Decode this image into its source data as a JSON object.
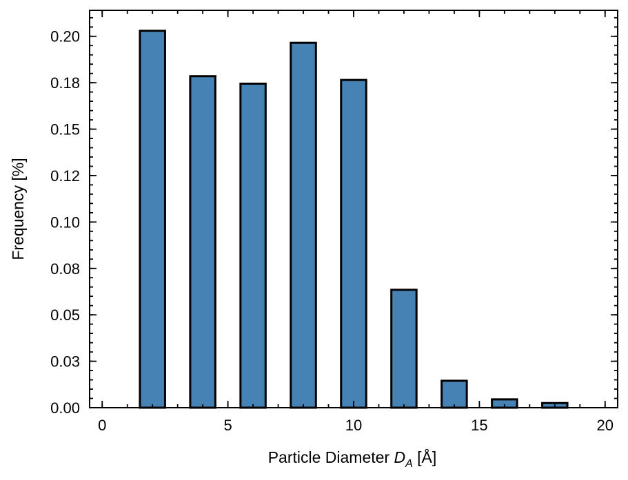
{
  "chart_data": {
    "type": "bar",
    "xlabel": "Particle Diameter D_A [Å]",
    "xlabel_parts": {
      "prefix": "Particle Diameter ",
      "symbol": "D",
      "subscript": "A",
      "suffix": " [Å]"
    },
    "ylabel": "Frequency [%]",
    "xlim": [
      -0.5,
      20.5
    ],
    "ylim": [
      0,
      0.214
    ],
    "x_ticks": [
      0,
      5,
      10,
      15,
      20
    ],
    "x_tick_labels": [
      "0",
      "5",
      "10",
      "15",
      "20"
    ],
    "y_ticks": [
      0,
      0.025,
      0.05,
      0.075,
      0.1,
      0.125,
      0.15,
      0.175,
      0.2
    ],
    "y_tick_labels": [
      "0.00",
      "0.03",
      "0.05",
      "0.08",
      "0.10",
      "0.12",
      "0.15",
      "0.18",
      "0.20"
    ],
    "bar_width": 1.0,
    "bins": [
      {
        "center": 1,
        "value": 0.0
      },
      {
        "center": 2,
        "value": 0.203
      },
      {
        "center": 4,
        "value": 0.1785
      },
      {
        "center": 6,
        "value": 0.1745
      },
      {
        "center": 8,
        "value": 0.1965
      },
      {
        "center": 10,
        "value": 0.1765
      },
      {
        "center": 12,
        "value": 0.0635
      },
      {
        "center": 14,
        "value": 0.0145
      },
      {
        "center": 16,
        "value": 0.0045
      },
      {
        "center": 18,
        "value": 0.0025
      },
      {
        "center": 19,
        "value": 0.0
      }
    ],
    "bar_color": "#4682b4",
    "edge_color": "#000000",
    "grid": false,
    "legend": "none"
  }
}
